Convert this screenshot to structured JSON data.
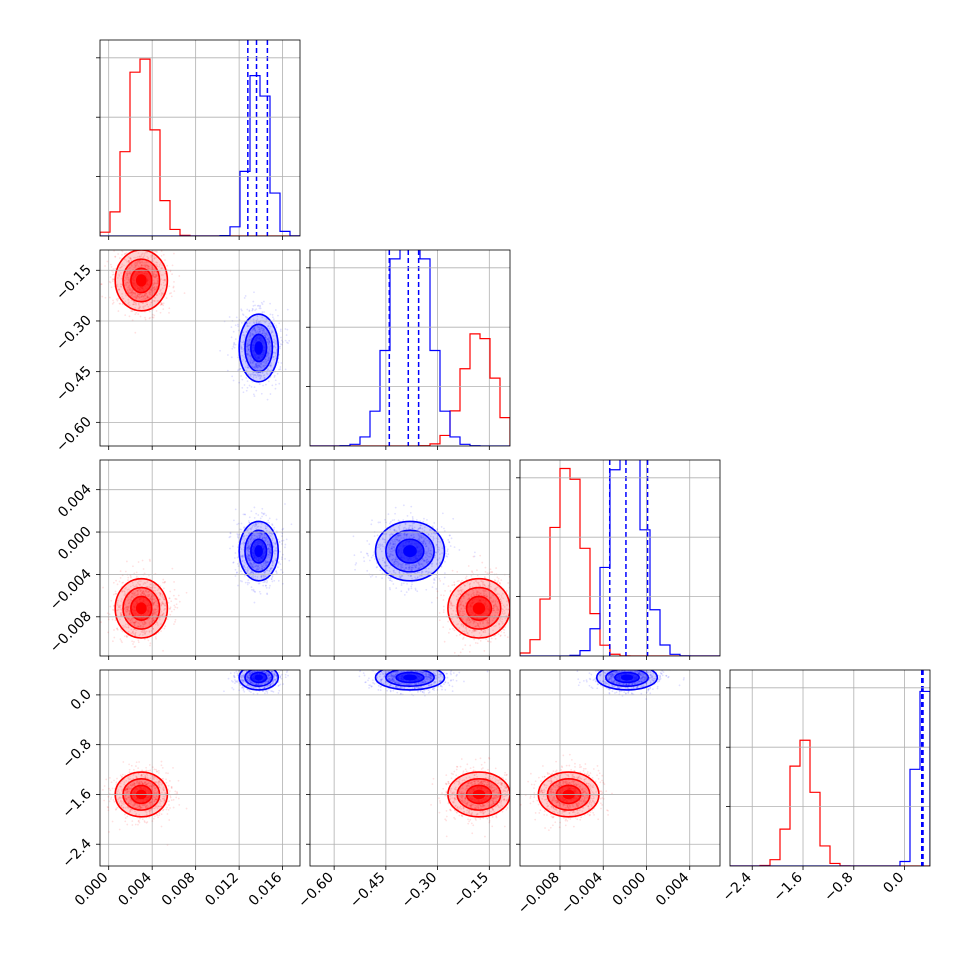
{
  "chart_data": {
    "type": "corner",
    "colors": {
      "series_a": "#ff0000",
      "series_b": "#0000ff"
    },
    "grid": true,
    "params": [
      {
        "range": [
          -0.0008,
          0.0176
        ],
        "ticks": [
          0.0,
          0.004,
          0.008,
          0.012,
          0.016
        ],
        "tick_labels": [
          "0.000",
          "0.004",
          "0.008",
          "0.012",
          "0.016"
        ]
      },
      {
        "range": [
          -0.67,
          -0.09
        ],
        "ticks": [
          -0.6,
          -0.45,
          -0.3,
          -0.15
        ],
        "tick_labels": [
          "−0.60",
          "−0.45",
          "−0.30",
          "−0.15"
        ]
      },
      {
        "range": [
          -0.0117,
          0.0068
        ],
        "ticks": [
          -0.012,
          -0.008,
          -0.004,
          0.0,
          0.004
        ],
        "tick_labels": [
          "−0.012",
          "−0.008",
          "−0.004",
          "0.000",
          "0.004"
        ]
      },
      {
        "range": [
          -2.75,
          0.4
        ],
        "ticks": [
          -2.4,
          -1.6,
          -0.8,
          0.0
        ],
        "tick_labels": [
          "−2.4",
          "−1.6",
          "−0.8",
          "0.0"
        ]
      }
    ],
    "series": [
      {
        "name": "",
        "color": "#ff0000",
        "mean": [
          0.003,
          -0.18,
          -0.0072,
          -1.6
        ],
        "std": [
          0.0012,
          0.045,
          0.0014,
          0.18
        ],
        "hist_peaks": [
          0.31,
          0.195,
          0.325,
          0.215
        ]
      },
      {
        "name": "",
        "color": "#0000ff",
        "mean": [
          0.0138,
          -0.38,
          -0.0018,
          0.28
        ],
        "std": [
          0.0009,
          0.05,
          0.0014,
          0.1
        ],
        "quantiles": [
          [
            0.0128,
            0.0136,
            0.0146
          ],
          [
            -0.44,
            -0.385,
            -0.355
          ],
          [
            -0.0034,
            -0.0019,
            0.0001
          ],
          [
            0.27,
            0.28,
            0.29
          ]
        ],
        "hist_peaks": [
          0.29,
          0.46,
          0.43,
          0.32
        ]
      }
    ]
  }
}
